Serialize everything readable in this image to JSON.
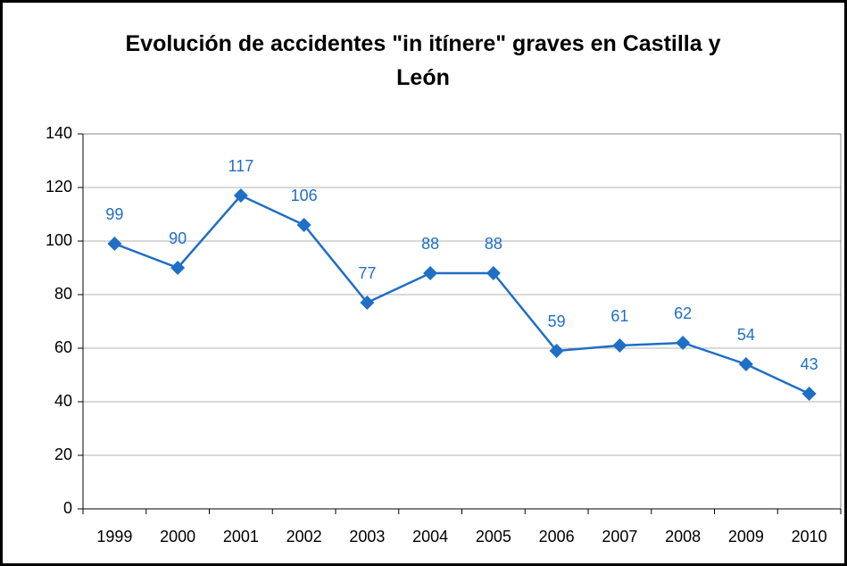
{
  "chart_data": {
    "type": "line",
    "title": "Evolución de accidentes \"in itínere\" graves en Castilla y León",
    "categories": [
      "1999",
      "2000",
      "2001",
      "2002",
      "2003",
      "2004",
      "2005",
      "2006",
      "2007",
      "2008",
      "2009",
      "2010"
    ],
    "series": [
      {
        "color": "#1f6fc5",
        "values": [
          99,
          90,
          117,
          106,
          77,
          88,
          88,
          59,
          61,
          62,
          54,
          43
        ]
      }
    ],
    "ylim": [
      0,
      140
    ],
    "yticks": [
      0,
      20,
      40,
      60,
      80,
      100,
      120,
      140
    ],
    "grid": true,
    "data_labels": true
  }
}
